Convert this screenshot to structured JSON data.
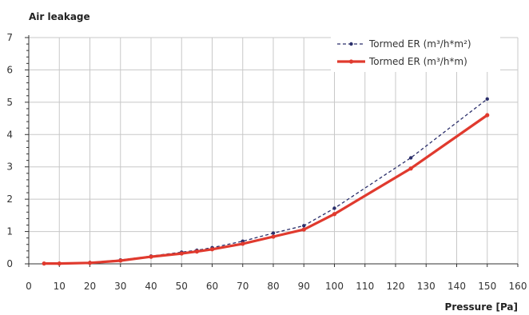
{
  "chart_data": {
    "type": "line",
    "ylabel": "Air leakage",
    "xlabel": "Pressure [Pa]",
    "xlim": [
      0,
      160
    ],
    "ylim": [
      0,
      7
    ],
    "xticks": [
      0,
      10,
      20,
      30,
      40,
      50,
      60,
      70,
      80,
      90,
      100,
      110,
      120,
      130,
      140,
      150,
      160
    ],
    "yticks": [
      0,
      1,
      2,
      3,
      4,
      5,
      6,
      7
    ],
    "grid": true,
    "legend": "top-right",
    "series": [
      {
        "name": "Tormed ER (m³/h*m²)",
        "color": "#2b2f6b",
        "style": "dashed",
        "x": [
          5,
          10,
          20,
          30,
          40,
          50,
          55,
          60,
          70,
          80,
          90,
          100,
          125,
          150
        ],
        "y": [
          0.01,
          0.01,
          0.04,
          0.12,
          0.24,
          0.36,
          0.42,
          0.5,
          0.7,
          0.95,
          1.18,
          1.72,
          3.28,
          5.1
        ]
      },
      {
        "name": "Tormed ER (m³/h*m)",
        "color": "#e03a2e",
        "style": "solid",
        "x": [
          5,
          10,
          20,
          30,
          40,
          50,
          55,
          60,
          70,
          80,
          90,
          100,
          125,
          150
        ],
        "y": [
          0.01,
          0.01,
          0.03,
          0.1,
          0.22,
          0.32,
          0.38,
          0.45,
          0.62,
          0.84,
          1.06,
          1.54,
          2.95,
          4.6
        ]
      }
    ]
  }
}
